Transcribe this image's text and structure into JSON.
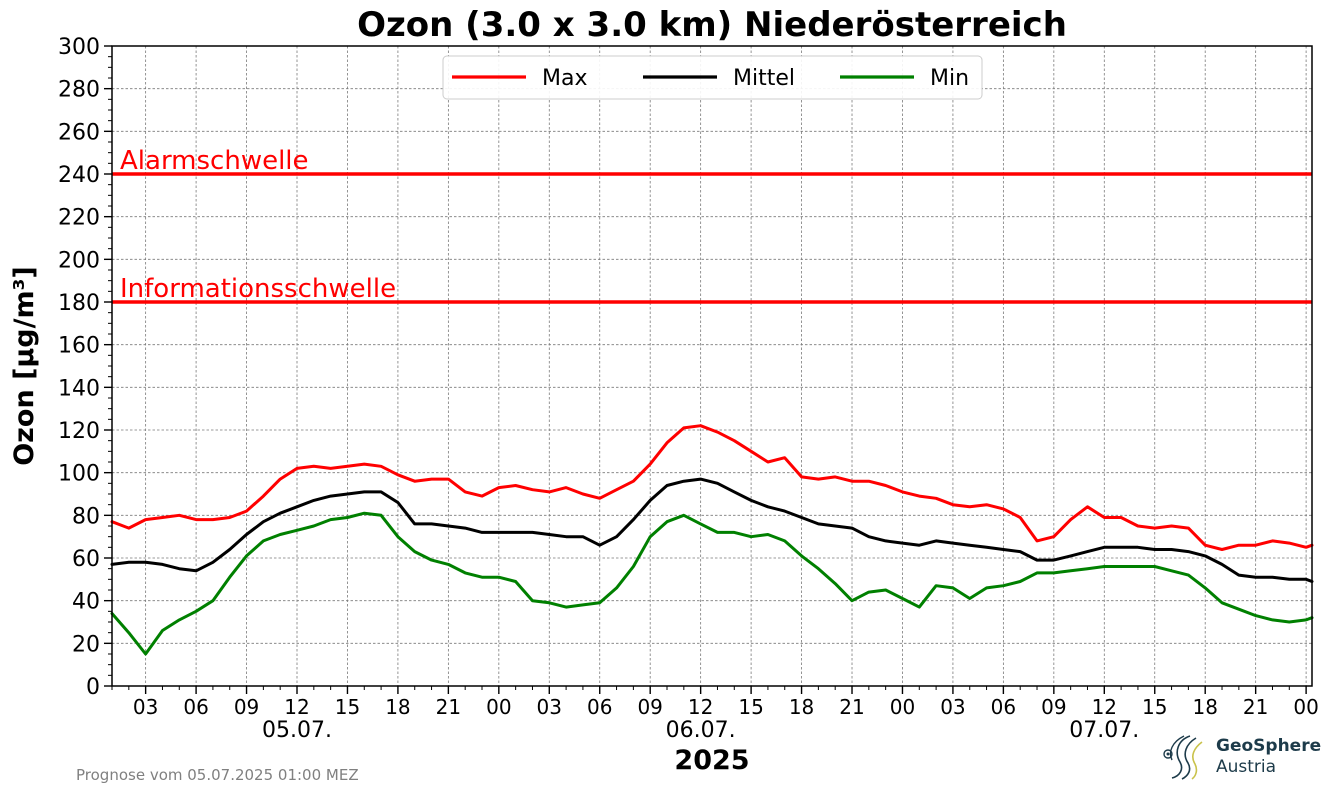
{
  "chart_data": {
    "type": "line",
    "title": "Ozon (3.0 x 3.0 km) Niederösterreich",
    "ylabel": "Ozon [µg/m³]",
    "xlabel": "2025",
    "ylim": [
      0,
      300
    ],
    "y_ticks": [
      0,
      20,
      40,
      60,
      80,
      100,
      120,
      140,
      160,
      180,
      200,
      220,
      240,
      260,
      280,
      300
    ],
    "x_range_hours": [
      1,
      72
    ],
    "x_unit": "hours since 05.07.2025 00:00",
    "x_tick_hours": [
      3,
      6,
      9,
      12,
      15,
      18,
      21,
      24,
      27,
      30,
      33,
      36,
      39,
      42,
      45,
      48,
      51,
      54,
      57,
      60,
      63,
      66,
      69,
      72
    ],
    "x_tick_labels": [
      "03",
      "06",
      "09",
      "12",
      "15",
      "18",
      "21",
      "00",
      "03",
      "06",
      "09",
      "12",
      "15",
      "18",
      "21",
      "00",
      "03",
      "06",
      "09",
      "12",
      "15",
      "18",
      "21",
      "00"
    ],
    "date_labels": [
      {
        "hour": 12,
        "label": "05.07."
      },
      {
        "hour": 36,
        "label": "06.07."
      },
      {
        "hour": 60,
        "label": "07.07."
      }
    ],
    "grid": true,
    "legend_position": "top-center",
    "thresholds": [
      {
        "name": "Alarmschwelle",
        "value": 240,
        "color": "#ff0000"
      },
      {
        "name": "Informationsschwelle",
        "value": 180,
        "color": "#ff0000"
      }
    ],
    "x": [
      1,
      2,
      3,
      4,
      5,
      6,
      7,
      8,
      9,
      10,
      11,
      12,
      13,
      14,
      15,
      16,
      17,
      18,
      19,
      20,
      21,
      22,
      23,
      24,
      25,
      26,
      27,
      28,
      29,
      30,
      31,
      32,
      33,
      34,
      35,
      36,
      37,
      38,
      39,
      40,
      41,
      42,
      43,
      44,
      45,
      46,
      47,
      48,
      49,
      50,
      51,
      52,
      53,
      54,
      55,
      56,
      57,
      58,
      59,
      60,
      61,
      62,
      63,
      64,
      65,
      66,
      67,
      68,
      69,
      70,
      71,
      72,
      73
    ],
    "series": [
      {
        "name": "Max",
        "color": "#ff0000",
        "values": [
          77,
          74,
          78,
          79,
          80,
          78,
          78,
          79,
          82,
          89,
          97,
          102,
          103,
          102,
          103,
          104,
          103,
          99,
          96,
          97,
          97,
          91,
          89,
          93,
          94,
          92,
          91,
          93,
          90,
          88,
          92,
          96,
          104,
          114,
          121,
          122,
          119,
          115,
          110,
          105,
          107,
          98,
          97,
          98,
          96,
          96,
          94,
          91,
          89,
          88,
          85,
          84,
          85,
          83,
          79,
          68,
          70,
          78,
          84,
          79,
          79,
          75,
          74,
          75,
          74,
          66,
          64,
          66,
          66,
          68,
          67,
          65,
          66
        ]
      },
      {
        "name": "Mittel",
        "color": "#000000",
        "values": [
          57,
          58,
          58,
          57,
          55,
          54,
          58,
          64,
          71,
          77,
          81,
          84,
          87,
          89,
          90,
          91,
          91,
          86,
          76,
          76,
          75,
          74,
          72,
          72,
          72,
          72,
          71,
          70,
          70,
          66,
          70,
          78,
          87,
          94,
          96,
          97,
          95,
          91,
          87,
          84,
          82,
          79,
          76,
          75,
          74,
          70,
          68,
          67,
          66,
          68,
          67,
          66,
          65,
          64,
          63,
          59,
          59,
          61,
          63,
          65,
          65,
          65,
          64,
          64,
          63,
          61,
          57,
          52,
          51,
          51,
          50,
          50,
          49
        ]
      },
      {
        "name": "Min",
        "color": "#008000",
        "values": [
          34,
          25,
          15,
          26,
          31,
          35,
          40,
          51,
          61,
          68,
          71,
          73,
          75,
          78,
          79,
          81,
          80,
          70,
          63,
          59,
          57,
          53,
          51,
          51,
          49,
          40,
          39,
          37,
          38,
          39,
          46,
          56,
          70,
          77,
          80,
          76,
          72,
          72,
          70,
          71,
          68,
          61,
          55,
          48,
          40,
          44,
          45,
          41,
          37,
          47,
          46,
          41,
          46,
          47,
          49,
          53,
          53,
          54,
          55,
          56,
          56,
          56,
          56,
          54,
          52,
          46,
          39,
          36,
          33,
          31,
          30,
          31,
          32
        ]
      }
    ]
  },
  "footer": {
    "forecast_note": "Prognose vom 05.07.2025 01:00 MEZ"
  },
  "logo": {
    "name": "GeoSphere",
    "subtitle": "Austria"
  }
}
